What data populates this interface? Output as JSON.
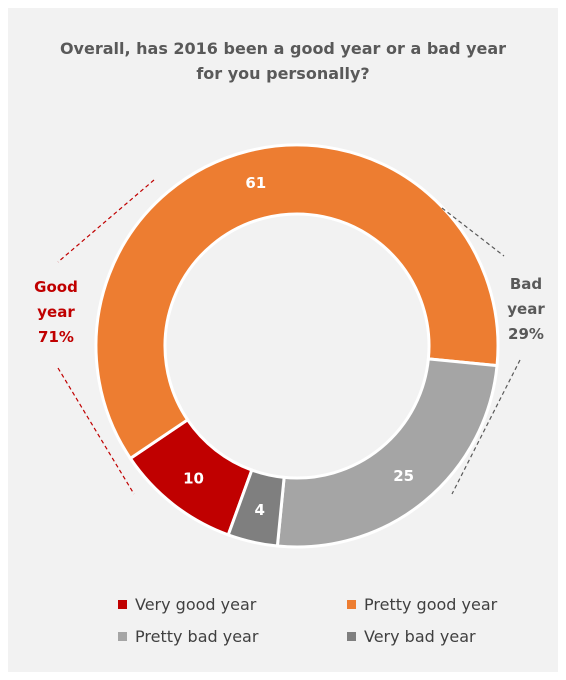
{
  "chart_data": {
    "type": "pie",
    "variant": "donut",
    "title_lines": [
      "Overall, has 2016 been a good year or a bad year",
      "for you personally?"
    ],
    "slices": [
      {
        "name": "Very good year",
        "value": 10,
        "label": "10",
        "color": "#c00000",
        "label_color": "#ffffff"
      },
      {
        "name": "Pretty good year",
        "value": 61,
        "label": "61",
        "color": "#ed7d31",
        "label_color": "#ffffff"
      },
      {
        "name": "Pretty bad year",
        "value": 25,
        "label": "25",
        "color": "#a5a5a5",
        "label_color": "#ffffff"
      },
      {
        "name": "Very bad year",
        "value": 4,
        "label": "4",
        "color": "#7f7f7f",
        "label_color": "#ffffff"
      }
    ],
    "groups": [
      {
        "lines": [
          "Good",
          "year",
          "71%"
        ],
        "color": "#c00000"
      },
      {
        "lines": [
          "Bad",
          "year",
          "29%"
        ],
        "color": "#595959"
      }
    ],
    "legend_placement": "bottom"
  }
}
